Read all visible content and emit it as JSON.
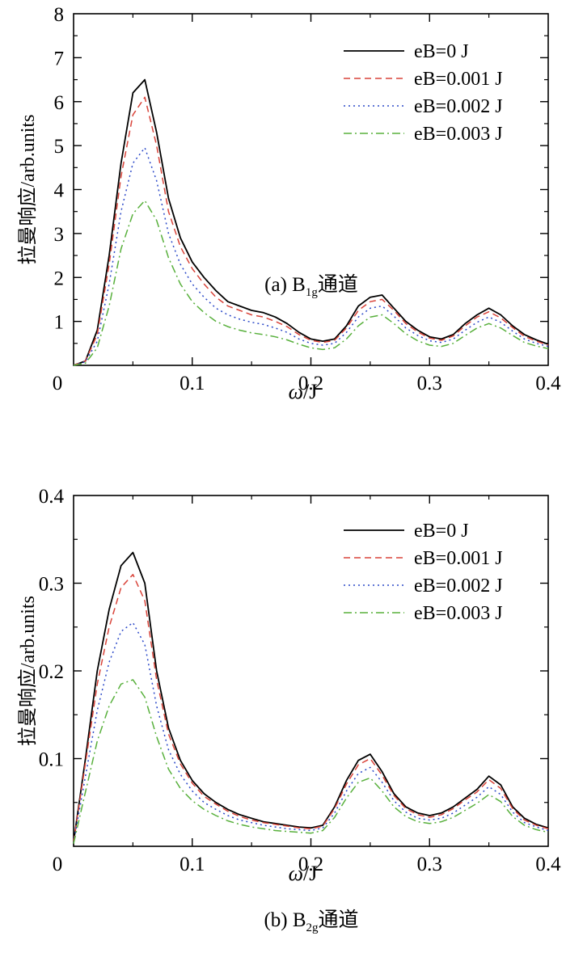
{
  "chart_data": [
    {
      "type": "line",
      "caption": "(a) B",
      "caption_sub": "1g",
      "caption_suffix": "通道",
      "xlabel": "ω/J",
      "ylabel": "拉曼响应/arb.units",
      "xlim": [
        0,
        0.4
      ],
      "ylim": [
        0,
        8
      ],
      "xticks": [
        0,
        0.1,
        0.2,
        0.3,
        0.4
      ],
      "xtick_labels": [
        "0",
        "0.1",
        "0.2",
        "0.3",
        "0.4"
      ],
      "yticks": [
        1,
        2,
        3,
        4,
        5,
        6,
        7,
        8
      ],
      "ytick_labels": [
        "1",
        "2",
        "3",
        "4",
        "5",
        "6",
        "7",
        "8"
      ],
      "x_origin_label": "0",
      "legend_position": "top-right",
      "grid": false,
      "x": [
        0,
        0.01,
        0.02,
        0.03,
        0.04,
        0.05,
        0.06,
        0.07,
        0.08,
        0.09,
        0.1,
        0.11,
        0.12,
        0.13,
        0.14,
        0.15,
        0.16,
        0.17,
        0.18,
        0.19,
        0.2,
        0.21,
        0.22,
        0.23,
        0.24,
        0.25,
        0.26,
        0.27,
        0.28,
        0.29,
        0.3,
        0.31,
        0.32,
        0.33,
        0.34,
        0.35,
        0.36,
        0.37,
        0.38,
        0.39,
        0.4
      ],
      "series": [
        {
          "name": "eB=0 J",
          "color": "#000000",
          "dash": "",
          "values": [
            0,
            0.1,
            0.8,
            2.5,
            4.6,
            6.2,
            6.5,
            5.3,
            3.8,
            2.9,
            2.35,
            2.0,
            1.7,
            1.45,
            1.35,
            1.25,
            1.2,
            1.1,
            0.95,
            0.75,
            0.6,
            0.55,
            0.6,
            0.9,
            1.35,
            1.55,
            1.6,
            1.3,
            1.0,
            0.8,
            0.65,
            0.6,
            0.7,
            0.95,
            1.15,
            1.3,
            1.15,
            0.9,
            0.7,
            0.58,
            0.48
          ]
        },
        {
          "name": "eB=0.001 J",
          "color": "#d9443a",
          "dash": "8,5",
          "values": [
            0,
            0.1,
            0.7,
            2.3,
            4.3,
            5.7,
            6.1,
            5.0,
            3.5,
            2.7,
            2.2,
            1.85,
            1.55,
            1.35,
            1.25,
            1.15,
            1.1,
            1.0,
            0.88,
            0.7,
            0.57,
            0.52,
            0.57,
            0.85,
            1.25,
            1.45,
            1.5,
            1.25,
            0.95,
            0.76,
            0.62,
            0.57,
            0.67,
            0.9,
            1.1,
            1.22,
            1.08,
            0.86,
            0.66,
            0.55,
            0.46
          ]
        },
        {
          "name": "eB=0.002 J",
          "color": "#2a48c8",
          "dash": "2,4",
          "values": [
            0,
            0.08,
            0.55,
            1.85,
            3.5,
            4.6,
            4.95,
            4.2,
            3.0,
            2.3,
            1.85,
            1.55,
            1.3,
            1.15,
            1.05,
            0.98,
            0.93,
            0.85,
            0.75,
            0.6,
            0.5,
            0.46,
            0.5,
            0.75,
            1.1,
            1.3,
            1.35,
            1.12,
            0.85,
            0.68,
            0.56,
            0.52,
            0.6,
            0.8,
            0.98,
            1.1,
            0.98,
            0.78,
            0.6,
            0.5,
            0.43
          ]
        },
        {
          "name": "eB=0.003 J",
          "color": "#58b03c",
          "dash": "10,4,2,4",
          "values": [
            0,
            0.05,
            0.4,
            1.35,
            2.65,
            3.45,
            3.75,
            3.3,
            2.45,
            1.85,
            1.45,
            1.2,
            1.0,
            0.88,
            0.8,
            0.74,
            0.7,
            0.65,
            0.58,
            0.48,
            0.4,
            0.36,
            0.4,
            0.6,
            0.9,
            1.1,
            1.15,
            0.95,
            0.72,
            0.56,
            0.46,
            0.43,
            0.5,
            0.68,
            0.85,
            0.95,
            0.85,
            0.68,
            0.52,
            0.44,
            0.38
          ]
        }
      ]
    },
    {
      "type": "line",
      "caption": "(b) B",
      "caption_sub": "2g",
      "caption_suffix": "通道",
      "xlabel": "ω/J",
      "ylabel": "拉曼响应/arb.units",
      "xlim": [
        0,
        0.4
      ],
      "ylim": [
        0,
        0.4
      ],
      "xticks": [
        0,
        0.1,
        0.2,
        0.3,
        0.4
      ],
      "xtick_labels": [
        "0",
        "0.1",
        "0.2",
        "0.3",
        "0.4"
      ],
      "yticks": [
        0.1,
        0.2,
        0.3,
        0.4
      ],
      "ytick_labels": [
        "0.1",
        "0.2",
        "0.3",
        "0.4"
      ],
      "x_origin_label": "0",
      "legend_position": "top-right",
      "grid": false,
      "x": [
        0,
        0.01,
        0.02,
        0.03,
        0.04,
        0.05,
        0.06,
        0.07,
        0.08,
        0.09,
        0.1,
        0.11,
        0.12,
        0.13,
        0.14,
        0.15,
        0.16,
        0.17,
        0.18,
        0.19,
        0.2,
        0.21,
        0.22,
        0.23,
        0.24,
        0.25,
        0.26,
        0.27,
        0.28,
        0.29,
        0.3,
        0.31,
        0.32,
        0.33,
        0.34,
        0.35,
        0.36,
        0.37,
        0.38,
        0.39,
        0.4
      ],
      "series": [
        {
          "name": "eB=0 J",
          "color": "#000000",
          "dash": "",
          "values": [
            0.005,
            0.1,
            0.2,
            0.27,
            0.32,
            0.335,
            0.3,
            0.2,
            0.135,
            0.098,
            0.075,
            0.06,
            0.05,
            0.042,
            0.036,
            0.032,
            0.028,
            0.026,
            0.024,
            0.022,
            0.021,
            0.024,
            0.045,
            0.075,
            0.098,
            0.105,
            0.085,
            0.06,
            0.045,
            0.038,
            0.035,
            0.038,
            0.045,
            0.055,
            0.065,
            0.08,
            0.07,
            0.045,
            0.032,
            0.025,
            0.021
          ]
        },
        {
          "name": "eB=0.001 J",
          "color": "#d9443a",
          "dash": "8,5",
          "values": [
            0.005,
            0.095,
            0.185,
            0.25,
            0.295,
            0.31,
            0.28,
            0.19,
            0.128,
            0.094,
            0.072,
            0.057,
            0.048,
            0.04,
            0.034,
            0.03,
            0.027,
            0.025,
            0.023,
            0.021,
            0.02,
            0.023,
            0.043,
            0.071,
            0.093,
            0.1,
            0.081,
            0.058,
            0.043,
            0.036,
            0.033,
            0.036,
            0.043,
            0.053,
            0.062,
            0.076,
            0.066,
            0.043,
            0.03,
            0.024,
            0.02
          ]
        },
        {
          "name": "eB=0.002 J",
          "color": "#2a48c8",
          "dash": "2,4",
          "values": [
            0.004,
            0.08,
            0.155,
            0.21,
            0.245,
            0.255,
            0.23,
            0.16,
            0.11,
            0.082,
            0.063,
            0.05,
            0.042,
            0.035,
            0.03,
            0.027,
            0.024,
            0.022,
            0.02,
            0.019,
            0.018,
            0.021,
            0.038,
            0.063,
            0.083,
            0.09,
            0.073,
            0.052,
            0.039,
            0.032,
            0.03,
            0.032,
            0.038,
            0.047,
            0.056,
            0.068,
            0.059,
            0.039,
            0.027,
            0.022,
            0.018
          ]
        },
        {
          "name": "eB=0.003 J",
          "color": "#58b03c",
          "dash": "10,4,2,4",
          "values": [
            0.003,
            0.062,
            0.12,
            0.16,
            0.185,
            0.19,
            0.17,
            0.125,
            0.088,
            0.066,
            0.052,
            0.042,
            0.035,
            0.029,
            0.025,
            0.022,
            0.02,
            0.018,
            0.017,
            0.016,
            0.015,
            0.018,
            0.033,
            0.055,
            0.073,
            0.078,
            0.063,
            0.045,
            0.034,
            0.028,
            0.026,
            0.028,
            0.033,
            0.041,
            0.049,
            0.059,
            0.051,
            0.034,
            0.024,
            0.019,
            0.016
          ]
        }
      ]
    }
  ]
}
